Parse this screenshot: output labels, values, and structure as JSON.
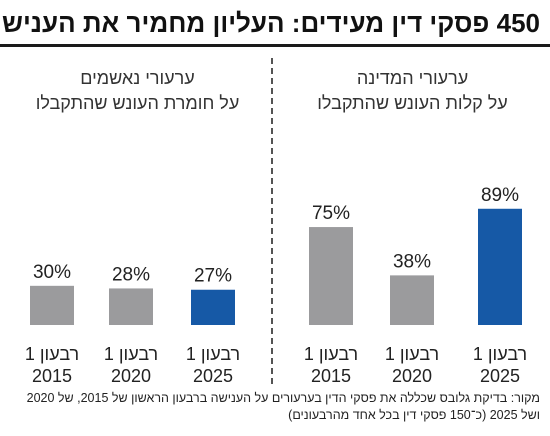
{
  "title": "450 פסקי דין מעידים: העליון מחמיר את הענישה",
  "colors": {
    "gray": "#9b9b9d",
    "blue": "#1659a6",
    "text": "#222222"
  },
  "panels": [
    {
      "subtitle_line1": "ערעורי המדינה",
      "subtitle_line2": "על קלות העונש שהתקבלו"
    },
    {
      "subtitle_line1": "ערעורי נאשמים",
      "subtitle_line2": "על חומרת העונש שהתקבלו"
    }
  ],
  "chart_data": [
    {
      "type": "bar",
      "title": "ערעורי המדינה על קלות העונש שהתקבלו",
      "categories": [
        {
          "line1": "רבעון 1",
          "line2": "2015"
        },
        {
          "line1": "רבעון 1",
          "line2": "2020"
        },
        {
          "line1": "רבעון 1",
          "line2": "2025"
        }
      ],
      "values": [
        75,
        38,
        89
      ],
      "labels": [
        "75%",
        "38%",
        "89%"
      ],
      "highlight_index": 2,
      "ylim": [
        0,
        100
      ]
    },
    {
      "type": "bar",
      "title": "ערעורי נאשמים על חומרת העונש שהתקבלו",
      "categories": [
        {
          "line1": "רבעון 1",
          "line2": "2015"
        },
        {
          "line1": "רבעון 1",
          "line2": "2020"
        },
        {
          "line1": "רבעון 1",
          "line2": "2025"
        }
      ],
      "values": [
        30,
        28,
        27
      ],
      "labels": [
        "30%",
        "28%",
        "27%"
      ],
      "highlight_index": 2,
      "ylim": [
        0,
        100
      ]
    }
  ],
  "source": {
    "line1": "מקור: בדיקת גלובס שכללה את פסקי הדין בערעורים על הענישה ברבעון הראשון של 2015, של 2020",
    "line2": "ושל 2025 (כ־150 פסקי דין בכל אחד מהרבעונים)"
  }
}
